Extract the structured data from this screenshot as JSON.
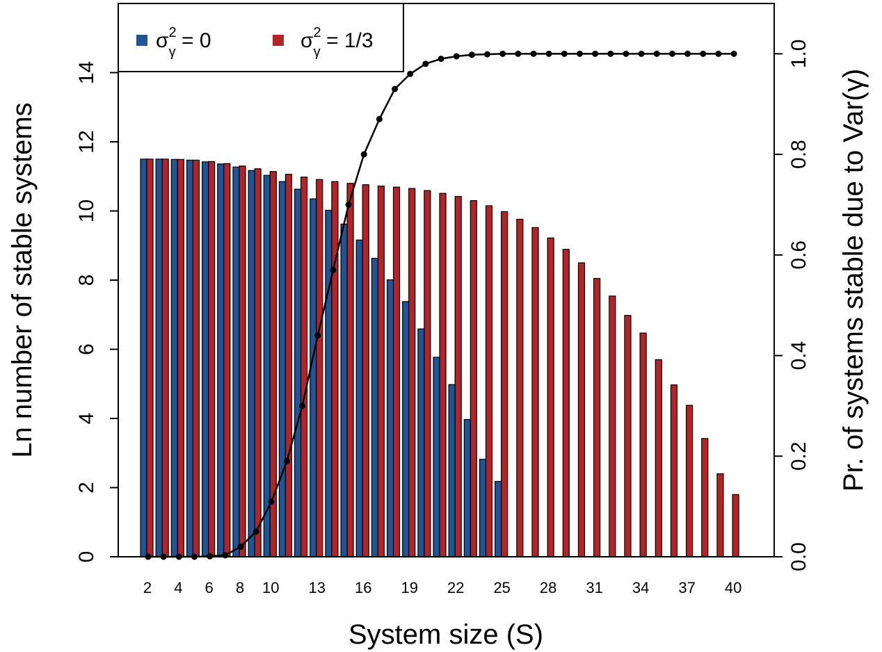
{
  "colors": {
    "series_a": "#1F5596",
    "series_b": "#B22428"
  },
  "axes": {
    "x_title": "System size (S)",
    "y_left_title": "Ln number of stable systems",
    "y_right_title_prefix": "Pr. of systems stable due to Var(",
    "y_right_title_symbol": "γ",
    "y_right_title_suffix": ")"
  },
  "legend": [
    {
      "sym": "σ",
      "sup": "2",
      "sub": "γ",
      "rest": " = 0",
      "color": "#1F5596"
    },
    {
      "sym": "σ",
      "sup": "2",
      "sub": "γ",
      "rest": " = 1/3",
      "color": "#B22428"
    }
  ],
  "chart_data": {
    "type": "bar",
    "x_tick_labels": [
      "2",
      "4",
      "6",
      "8",
      "10",
      "13",
      "16",
      "19",
      "22",
      "25",
      "28",
      "31",
      "34",
      "37",
      "40"
    ],
    "x_tick_values": [
      2,
      4,
      6,
      8,
      10,
      13,
      16,
      19,
      22,
      25,
      28,
      31,
      34,
      37,
      40
    ],
    "y_left_ticks": [
      "0",
      "2",
      "4",
      "6",
      "8",
      "10",
      "12",
      "14"
    ],
    "y_left_range": [
      0,
      16
    ],
    "y_right_ticks": [
      "0.0",
      "0.2",
      "0.4",
      "0.6",
      "0.8",
      "1.0"
    ],
    "y_right_range": [
      0,
      1.1
    ],
    "categories": [
      2,
      3,
      4,
      5,
      6,
      7,
      8,
      9,
      10,
      11,
      12,
      13,
      14,
      15,
      16,
      17,
      18,
      19,
      20,
      21,
      22,
      23,
      24,
      25,
      26,
      27,
      28,
      29,
      30,
      31,
      32,
      33,
      34,
      35,
      36,
      37,
      38,
      39,
      40
    ],
    "series": [
      {
        "name": "σγ² = 0",
        "values": [
          11.5,
          11.5,
          11.49,
          11.47,
          11.42,
          11.36,
          11.27,
          11.17,
          11.03,
          10.85,
          10.63,
          10.35,
          10.02,
          9.62,
          9.16,
          8.63,
          8.01,
          7.38,
          6.59,
          5.77,
          4.98,
          3.97,
          2.82,
          2.18,
          null,
          null,
          null,
          null,
          null,
          null,
          null,
          null,
          null,
          null,
          null,
          null,
          null,
          null,
          null
        ]
      },
      {
        "name": "σγ² = 1/3",
        "values": [
          11.5,
          11.5,
          11.49,
          11.47,
          11.43,
          11.37,
          11.3,
          11.22,
          11.14,
          11.06,
          10.98,
          10.91,
          10.85,
          10.8,
          10.76,
          10.72,
          10.69,
          10.65,
          10.59,
          10.51,
          10.42,
          10.3,
          10.15,
          9.98,
          9.76,
          9.52,
          9.22,
          8.89,
          8.5,
          8.05,
          7.54,
          6.98,
          6.47,
          5.7,
          4.97,
          4.38,
          3.42,
          2.4,
          1.8
        ]
      },
      {
        "name": "probability",
        "axis": "right",
        "values": [
          0,
          0,
          0,
          0,
          0.001,
          0.003,
          0.02,
          0.05,
          0.11,
          0.19,
          0.3,
          0.44,
          0.57,
          0.7,
          0.8,
          0.87,
          0.93,
          0.96,
          0.98,
          0.99,
          0.995,
          0.998,
          0.999,
          1,
          1,
          1,
          1,
          1,
          1,
          1,
          1,
          1,
          1,
          1,
          1,
          1,
          1,
          1,
          1
        ]
      }
    ],
    "grid": false,
    "legend_position": "top-left"
  }
}
